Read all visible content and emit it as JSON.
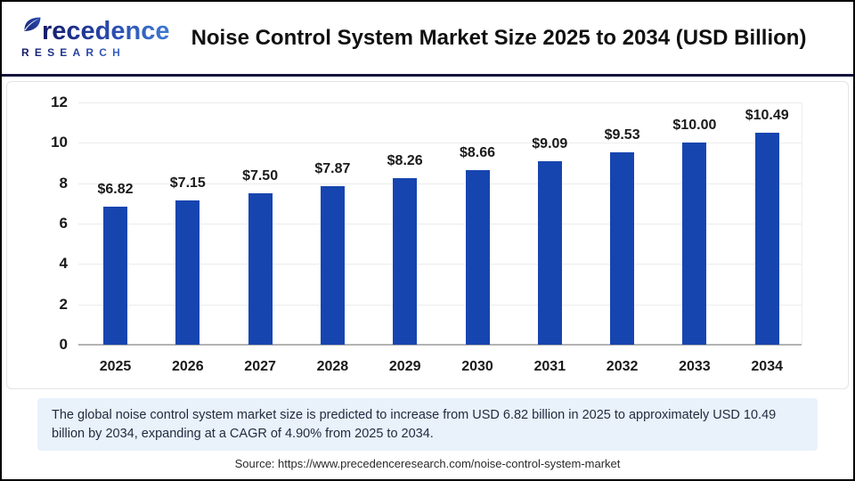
{
  "header": {
    "logo": {
      "brand": "Precedence",
      "sub": "RESEARCH"
    },
    "title": "Noise Control System Market Size 2025 to 2034 (USD Billion)"
  },
  "chart_data": {
    "type": "bar",
    "title": "Noise Control System Market Size 2025 to 2034 (USD Billion)",
    "categories": [
      "2025",
      "2026",
      "2027",
      "2028",
      "2029",
      "2030",
      "2031",
      "2032",
      "2033",
      "2034"
    ],
    "values": [
      6.82,
      7.15,
      7.5,
      7.87,
      8.26,
      8.66,
      9.09,
      9.53,
      10.0,
      10.49
    ],
    "value_labels": [
      "$6.82",
      "$7.15",
      "$7.50",
      "$7.87",
      "$8.26",
      "$8.66",
      "$9.09",
      "$9.53",
      "$10.00",
      "$10.49"
    ],
    "xlabel": "",
    "ylabel": "",
    "ylim": [
      0,
      12
    ],
    "yticks": [
      0,
      2,
      4,
      6,
      8,
      10,
      12
    ],
    "grid": true,
    "legend_position": "none",
    "bar_color": "#1745b0"
  },
  "footer": {
    "summary": "The global noise control system market size is predicted to increase from USD 6.82 billion in 2025 to approximately USD 10.49 billion by 2034, expanding at a CAGR of 4.90% from 2025 to 2034.",
    "source": "Source: https://www.precedenceresearch.com/noise-control-system-market"
  },
  "colors": {
    "bar": "#1745b0",
    "header_divider": "#14143c",
    "summary_background": "#e9f1fb",
    "logo_navy": "#141b66",
    "logo_blue": "#3e7ad1",
    "gridline": "#ececec",
    "axis_line": "#b3b3b3"
  }
}
